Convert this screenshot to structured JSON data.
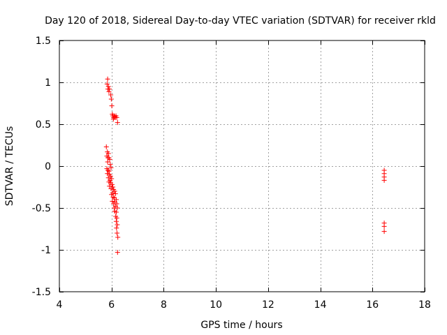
{
  "chart_data": {
    "type": "scatter",
    "title": "Day 120 of 2018, Sidereal Day-to-day VTEC variation (SDTVAR) for receiver rkld",
    "xlabel": "GPS time / hours",
    "ylabel": "SDTVAR / TECUs",
    "xlim": [
      4,
      18
    ],
    "ylim": [
      -1.5,
      1.5
    ],
    "xticks": [
      4,
      6,
      8,
      10,
      12,
      14,
      16,
      18
    ],
    "yticks": [
      -1.5,
      -1,
      -0.5,
      0,
      0.5,
      1,
      1.5
    ],
    "xtick_labels": [
      "4",
      "6",
      "8",
      "10",
      "12",
      "14",
      "16",
      "18"
    ],
    "ytick_labels": [
      "-1.5",
      "-1",
      "-0.5",
      "0",
      "0.5",
      "1",
      "1.5"
    ],
    "grid": true,
    "marker": "+",
    "color": "#ff0000",
    "series": [
      {
        "name": "SDTVAR",
        "points": [
          [
            5.85,
            1.04
          ],
          [
            5.83,
            0.98
          ],
          [
            5.88,
            0.95
          ],
          [
            5.86,
            0.92
          ],
          [
            5.92,
            0.92
          ],
          [
            5.9,
            0.89
          ],
          [
            5.97,
            0.85
          ],
          [
            5.99,
            0.8
          ],
          [
            6.01,
            0.72
          ],
          [
            6.03,
            0.62
          ],
          [
            6.05,
            0.6
          ],
          [
            6.08,
            0.58
          ],
          [
            6.1,
            0.6
          ],
          [
            6.12,
            0.59
          ],
          [
            6.14,
            0.58
          ],
          [
            6.07,
            0.56
          ],
          [
            6.17,
            0.6
          ],
          [
            6.2,
            0.58
          ],
          [
            6.23,
            0.52
          ],
          [
            5.8,
            0.23
          ],
          [
            5.84,
            0.17
          ],
          [
            5.88,
            0.15
          ],
          [
            5.82,
            0.12
          ],
          [
            5.86,
            0.1
          ],
          [
            5.9,
            0.1
          ],
          [
            5.93,
            0.08
          ],
          [
            5.85,
            0.05
          ],
          [
            5.95,
            0.02
          ],
          [
            5.98,
            -0.02
          ],
          [
            5.82,
            -0.03
          ],
          [
            5.86,
            -0.05
          ],
          [
            5.9,
            -0.06
          ],
          [
            5.84,
            -0.09
          ],
          [
            5.92,
            -0.1
          ],
          [
            5.96,
            -0.12
          ],
          [
            5.88,
            -0.14
          ],
          [
            6.0,
            -0.15
          ],
          [
            5.94,
            -0.17
          ],
          [
            5.9,
            -0.19
          ],
          [
            5.97,
            -0.2
          ],
          [
            6.02,
            -0.22
          ],
          [
            5.92,
            -0.24
          ],
          [
            6.05,
            -0.25
          ],
          [
            5.98,
            -0.27
          ],
          [
            6.08,
            -0.28
          ],
          [
            6.12,
            -0.3
          ],
          [
            6.04,
            -0.32
          ],
          [
            6.0,
            -0.34
          ],
          [
            6.15,
            -0.33
          ],
          [
            6.06,
            -0.37
          ],
          [
            6.1,
            -0.38
          ],
          [
            6.18,
            -0.4
          ],
          [
            6.03,
            -0.42
          ],
          [
            6.13,
            -0.43
          ],
          [
            6.08,
            -0.45
          ],
          [
            6.2,
            -0.45
          ],
          [
            6.15,
            -0.48
          ],
          [
            6.1,
            -0.5
          ],
          [
            6.22,
            -0.5
          ],
          [
            6.12,
            -0.54
          ],
          [
            6.18,
            -0.55
          ],
          [
            6.16,
            -0.6
          ],
          [
            6.2,
            -0.62
          ],
          [
            6.18,
            -0.66
          ],
          [
            6.22,
            -0.7
          ],
          [
            6.19,
            -0.74
          ],
          [
            6.21,
            -0.8
          ],
          [
            6.24,
            -0.85
          ],
          [
            6.23,
            -1.03
          ],
          [
            16.45,
            -0.05
          ],
          [
            16.45,
            -0.09
          ],
          [
            16.45,
            -0.13
          ],
          [
            16.45,
            -0.17
          ],
          [
            16.45,
            -0.68
          ],
          [
            16.45,
            -0.72
          ],
          [
            16.45,
            -0.78
          ]
        ]
      }
    ]
  }
}
